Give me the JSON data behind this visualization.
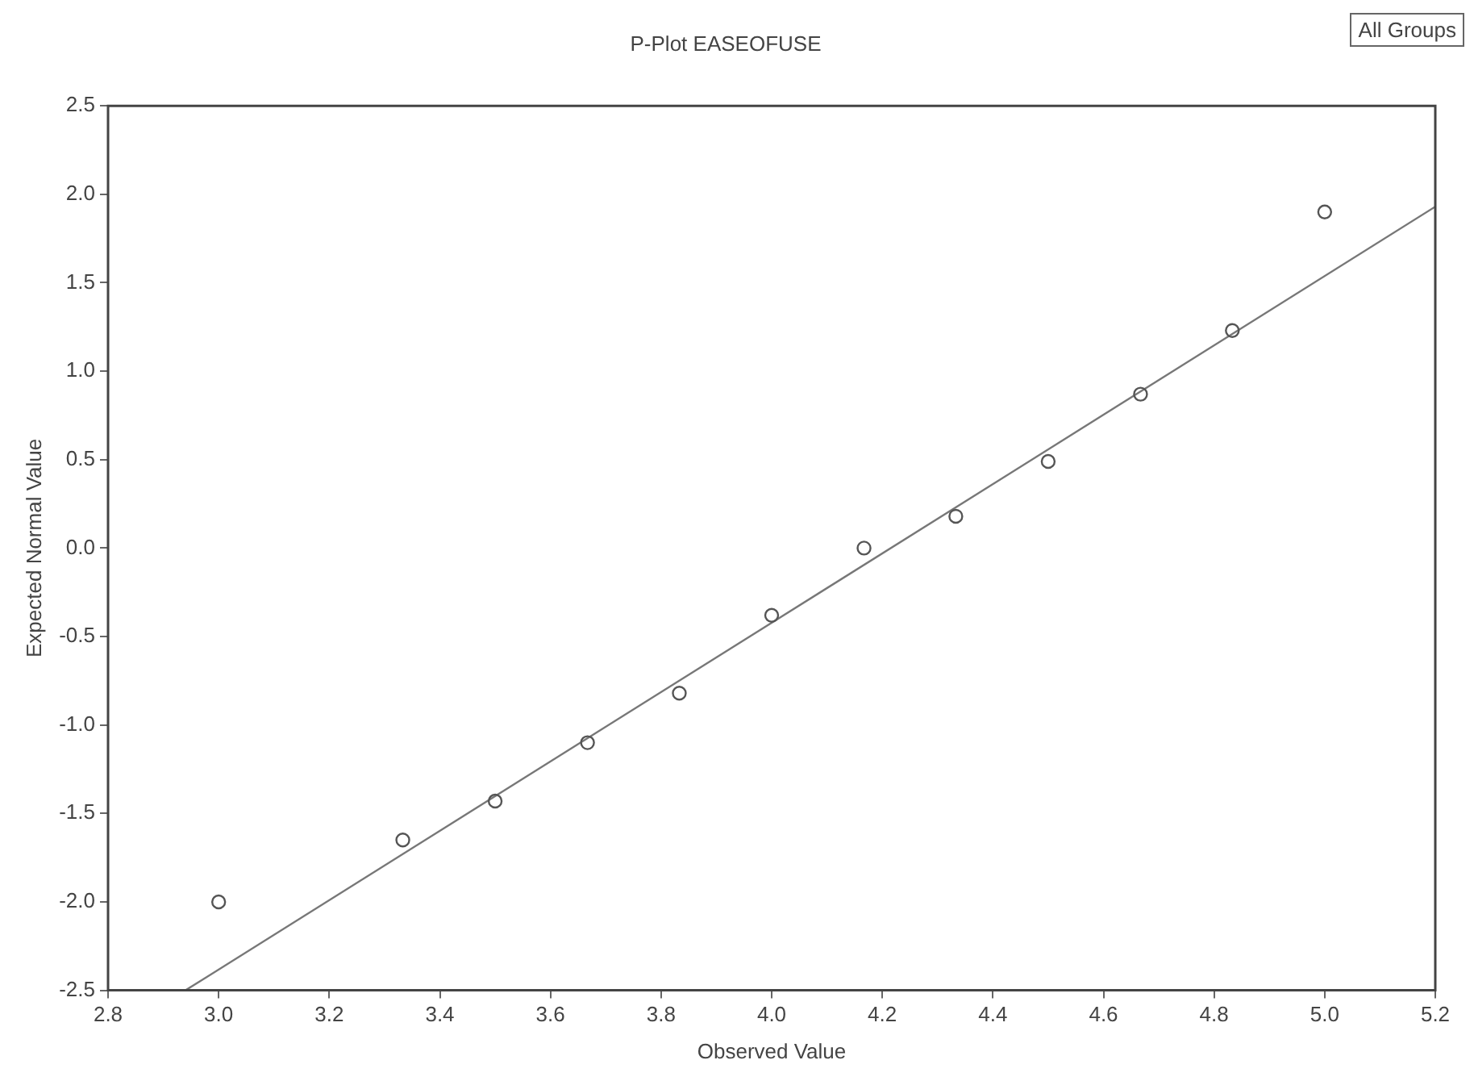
{
  "chart_data": {
    "type": "scatter",
    "title": "P-Plot EASEOFUSE",
    "xlabel": "Observed Value",
    "ylabel": "Expected Normal Value",
    "annotations": [
      "All Groups"
    ],
    "series": [
      {
        "type": "scatter",
        "color": "#555555",
        "marker": "circle",
        "x": [
          3.0,
          3.333,
          3.5,
          3.667,
          3.833,
          4.0,
          4.167,
          4.333,
          4.5,
          4.667,
          4.833,
          5.0
        ],
        "values": [
          -2.0,
          -1.65,
          -1.43,
          -1.1,
          -0.82,
          -0.38,
          0.0,
          0.18,
          0.49,
          0.87,
          1.23,
          1.9
        ]
      },
      {
        "type": "line",
        "color": "#777777",
        "marker": "none",
        "x": [
          2.94,
          5.2
        ],
        "values": [
          -2.5,
          1.93
        ]
      }
    ],
    "xlim": [
      2.8,
      5.2
    ],
    "ylim": [
      -2.5,
      2.5
    ],
    "xticks": [
      {
        "value": 2.8,
        "label": "2.8"
      },
      {
        "value": 3.0,
        "label": "3.0"
      },
      {
        "value": 3.2,
        "label": "3.2"
      },
      {
        "value": 3.4,
        "label": "3.4"
      },
      {
        "value": 3.6,
        "label": "3.6"
      },
      {
        "value": 3.8,
        "label": "3.8"
      },
      {
        "value": 4.0,
        "label": "4.0"
      },
      {
        "value": 4.2,
        "label": "4.2"
      },
      {
        "value": 4.4,
        "label": "4.4"
      },
      {
        "value": 4.6,
        "label": "4.6"
      },
      {
        "value": 4.8,
        "label": "4.8"
      },
      {
        "value": 5.0,
        "label": "5.0"
      },
      {
        "value": 5.2,
        "label": "5.2"
      }
    ],
    "yticks": [
      {
        "value": -2.5,
        "label": "-2.5"
      },
      {
        "value": -2.0,
        "label": "-2.0"
      },
      {
        "value": -1.5,
        "label": "-1.5"
      },
      {
        "value": -1.0,
        "label": "-1.0"
      },
      {
        "value": -0.5,
        "label": "-0.5"
      },
      {
        "value": 0,
        "label": "0.0"
      },
      {
        "value": 0.5,
        "label": "0.5"
      },
      {
        "value": 1.0,
        "label": "1.0"
      },
      {
        "value": 1.5,
        "label": "1.5"
      },
      {
        "value": 2.0,
        "label": "2.0"
      },
      {
        "value": 2.5,
        "label": "2.5"
      }
    ],
    "grid": false,
    "legend": false
  }
}
